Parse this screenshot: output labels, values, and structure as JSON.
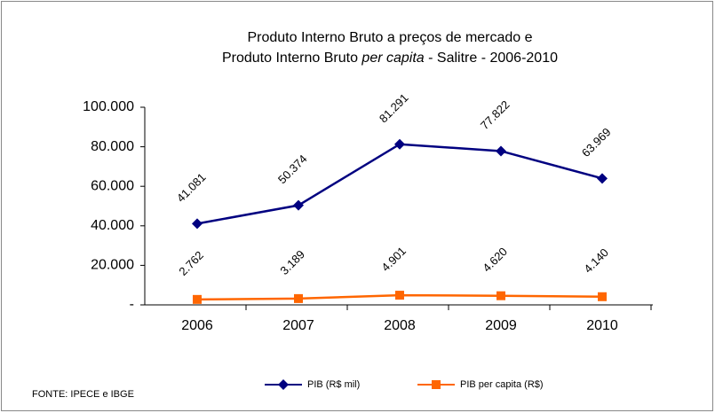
{
  "chart_data": {
    "type": "line",
    "title": [
      "Produto Interno Bruto a preços de mercado  e",
      [
        "Produto Interno Bruto ",
        "per capita",
        " - Salitre - 2006-2010"
      ]
    ],
    "categories": [
      "2006",
      "2007",
      "2008",
      "2009",
      "2010"
    ],
    "series": [
      {
        "name": "PIB (R$ mil)",
        "color": "#000080",
        "marker": "diamond",
        "values": [
          41081,
          50374,
          81291,
          77822,
          63969
        ],
        "value_labels": [
          "41.081",
          "50.374",
          "81.291",
          "77.822",
          "63.969"
        ]
      },
      {
        "name": "PIB per capita (R$)",
        "color": "#ff6600",
        "marker": "square",
        "values": [
          2762,
          3189,
          4901,
          4620,
          4140
        ],
        "value_labels": [
          "2.762",
          "3.189",
          "4.901",
          "4.620",
          "4.140"
        ]
      }
    ],
    "ylim": [
      0,
      100000
    ],
    "yticks": [
      {
        "value": 0,
        "label": "-"
      },
      {
        "value": 20000,
        "label": "20.000"
      },
      {
        "value": 40000,
        "label": "40.000"
      },
      {
        "value": 60000,
        "label": "60.000"
      },
      {
        "value": 80000,
        "label": "80.000"
      },
      {
        "value": 100000,
        "label": "100.000"
      }
    ],
    "legend": "bottom",
    "source": "FONTE: IPECE e IBGE"
  }
}
